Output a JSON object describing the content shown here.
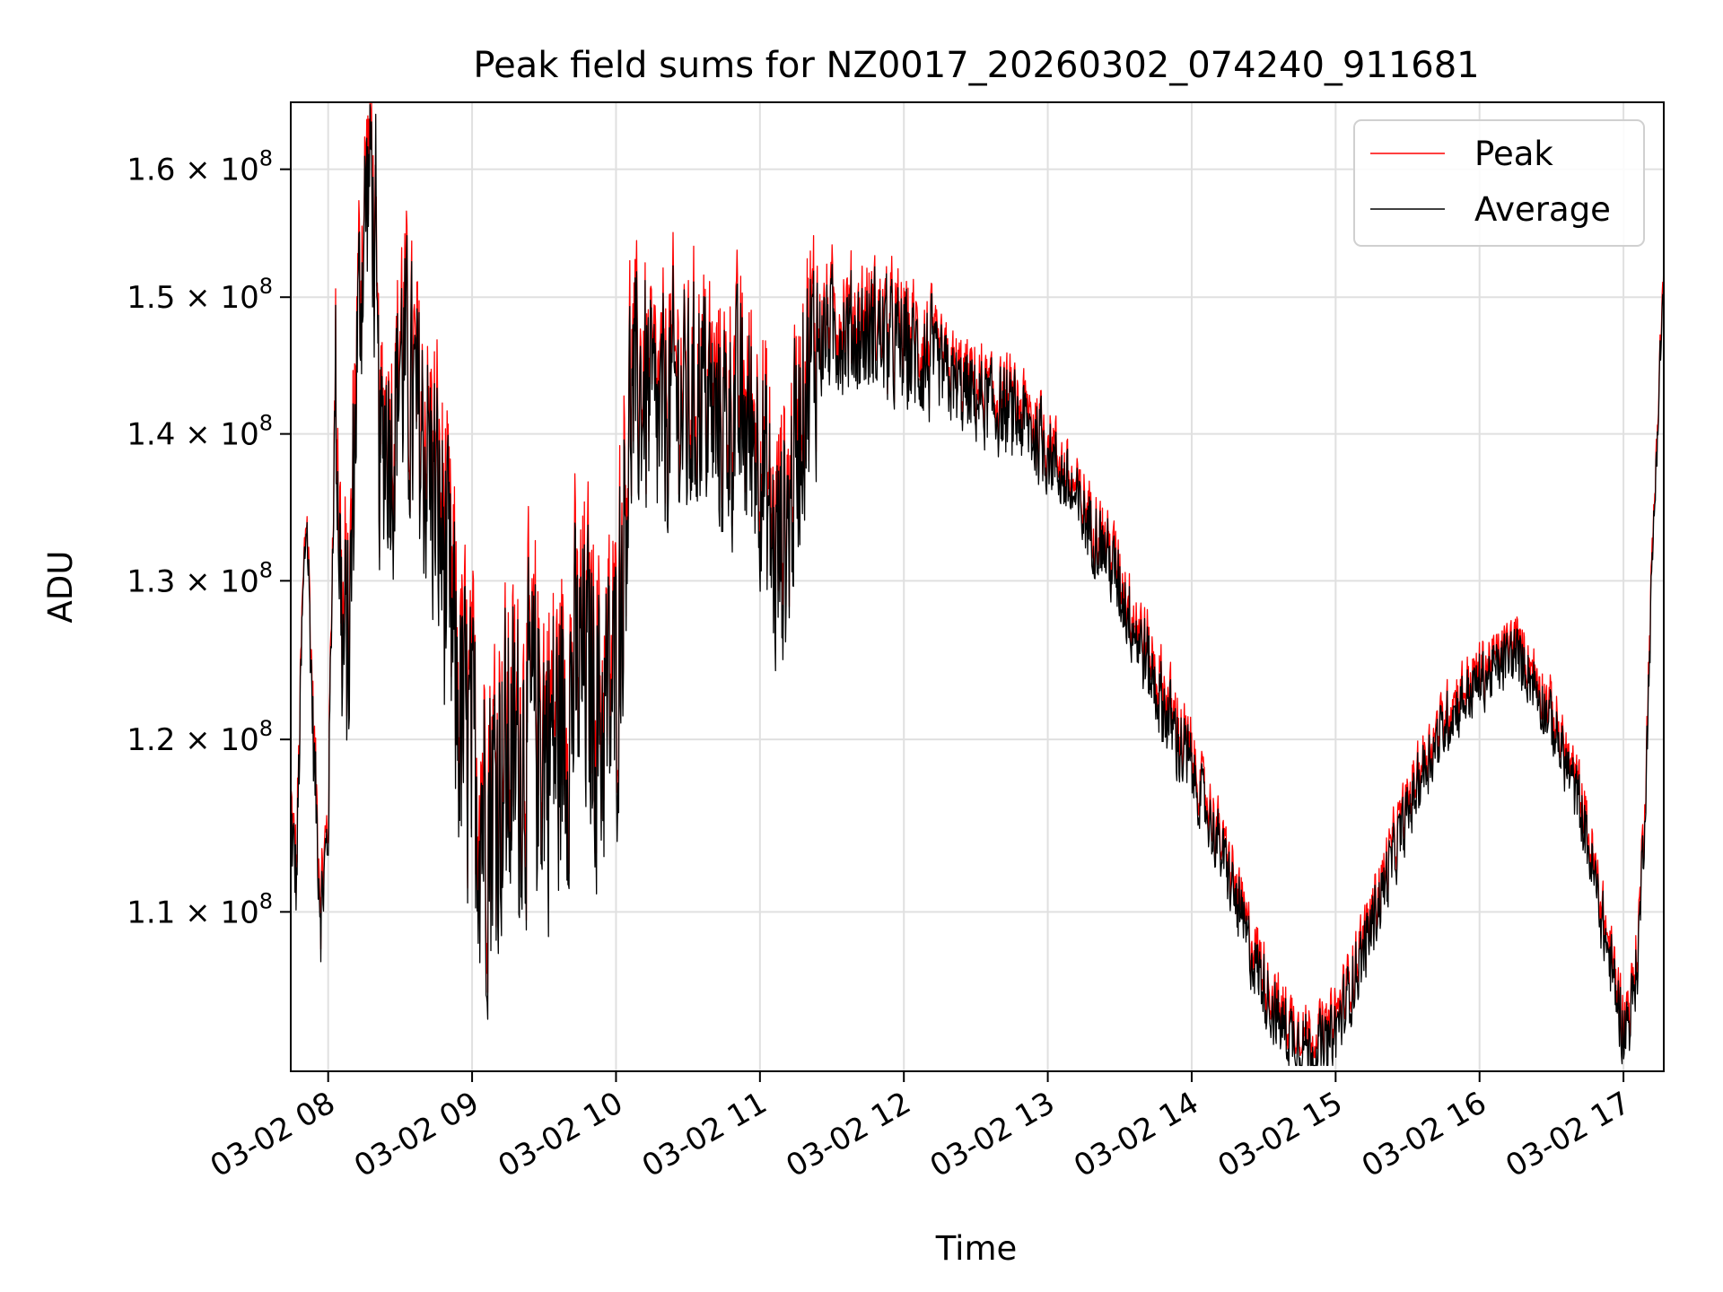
{
  "chart_data": {
    "type": "line",
    "title": "Peak field sums for NZ0017_20260302_074240_911681",
    "xlabel": "Time",
    "ylabel": "ADU",
    "yscale": "log",
    "grid": true,
    "legend_position": "top-right",
    "xlim_hours": [
      7.74,
      17.28
    ],
    "ylim": [
      101500000,
      165500000
    ],
    "x_ticks": [
      {
        "value": 8,
        "label": "03-02 08"
      },
      {
        "value": 9,
        "label": "03-02 09"
      },
      {
        "value": 10,
        "label": "03-02 10"
      },
      {
        "value": 11,
        "label": "03-02 11"
      },
      {
        "value": 12,
        "label": "03-02 12"
      },
      {
        "value": 13,
        "label": "03-02 13"
      },
      {
        "value": 14,
        "label": "03-02 14"
      },
      {
        "value": 15,
        "label": "03-02 15"
      },
      {
        "value": 16,
        "label": "03-02 16"
      },
      {
        "value": 17,
        "label": "03-02 17"
      }
    ],
    "y_ticks": [
      {
        "value": 110000000,
        "mant": "1.1",
        "exp": "8"
      },
      {
        "value": 120000000,
        "mant": "1.2",
        "exp": "8"
      },
      {
        "value": 130000000,
        "mant": "1.3",
        "exp": "8"
      },
      {
        "value": 140000000,
        "mant": "1.4",
        "exp": "8"
      },
      {
        "value": 150000000,
        "mant": "1.5",
        "exp": "8"
      },
      {
        "value": 160000000,
        "mant": "1.6",
        "exp": "8"
      }
    ],
    "tick_times_prefix": "× 10",
    "series": [
      {
        "name": "Peak",
        "color": "#ff0000"
      },
      {
        "name": "Average",
        "color": "#000000"
      }
    ],
    "average_trend": {
      "x_hours": [
        7.74,
        7.78,
        7.82,
        7.85,
        7.9,
        7.95,
        8.0,
        8.05,
        8.1,
        8.15,
        8.2,
        8.26,
        8.3,
        8.33,
        8.36,
        8.4,
        8.45,
        8.5,
        8.6,
        8.7,
        8.8,
        8.9,
        9.0,
        9.1,
        9.2,
        9.3,
        9.4,
        9.5,
        9.6,
        9.7,
        9.8,
        9.9,
        10.0,
        10.1,
        10.2,
        10.3,
        10.4,
        10.5,
        10.6,
        10.7,
        10.8,
        10.9,
        11.0,
        11.1,
        11.2,
        11.3,
        11.4,
        11.5,
        11.6,
        11.7,
        11.8,
        11.9,
        12.0,
        12.2,
        12.4,
        12.6,
        12.8,
        13.0,
        13.2,
        13.4,
        13.6,
        13.8,
        14.0,
        14.2,
        14.4,
        14.6,
        14.75,
        14.85,
        14.95,
        15.05,
        15.2,
        15.4,
        15.6,
        15.8,
        16.0,
        16.2,
        16.25,
        16.35,
        16.5,
        16.7,
        16.85,
        16.95,
        17.0,
        17.05,
        17.1,
        17.15,
        17.2,
        17.25,
        17.28
      ],
      "values_m": [
        115.0,
        111.5,
        127.0,
        134.5,
        119.0,
        110.0,
        114.5,
        143.5,
        125.0,
        126.0,
        146.0,
        157.0,
        161.0,
        148.0,
        137.0,
        141.0,
        139.0,
        146.0,
        141.0,
        138.0,
        132.0,
        122.0,
        118.0,
        116.0,
        118.0,
        118.5,
        120.5,
        120.0,
        119.5,
        123.0,
        124.0,
        121.0,
        123.0,
        142.0,
        143.0,
        140.0,
        143.0,
        141.0,
        143.5,
        140.0,
        141.5,
        140.5,
        139.5,
        131.0,
        134.0,
        143.0,
        146.5,
        147.5,
        147.5,
        147.0,
        147.5,
        146.5,
        146.0,
        145.0,
        143.0,
        142.0,
        141.0,
        139.0,
        135.0,
        132.0,
        127.0,
        122.0,
        118.0,
        113.5,
        108.0,
        104.0,
        103.0,
        102.5,
        102.8,
        104.5,
        108.0,
        113.0,
        118.0,
        121.5,
        123.5,
        125.0,
        125.3,
        124.0,
        121.0,
        116.0,
        109.5,
        105.5,
        103.5,
        104.5,
        107.5,
        116.0,
        131.0,
        144.0,
        151.5
      ]
    },
    "notable_points": [
      {
        "x_hour": 8.33,
        "series": "Average",
        "value_m": 164.5,
        "note": "maximum"
      },
      {
        "x_hour": 14.9,
        "series": "Average",
        "value_m": 101.8,
        "note": "minimum"
      },
      {
        "x_hour": 11.0,
        "series": "Average",
        "value_m": 130.5,
        "note": "dip"
      },
      {
        "x_hour": 16.25,
        "series": "Peak",
        "value_m": 127.5,
        "note": "local max"
      },
      {
        "x_hour": 17.28,
        "series": "Peak",
        "value_m": 153.0,
        "note": "end"
      }
    ],
    "colors": {
      "peak": "#ff0000",
      "average": "#000000",
      "grid": "#e0e0e0",
      "axes": "#000000",
      "legend_border": "#d0d0d0"
    }
  }
}
